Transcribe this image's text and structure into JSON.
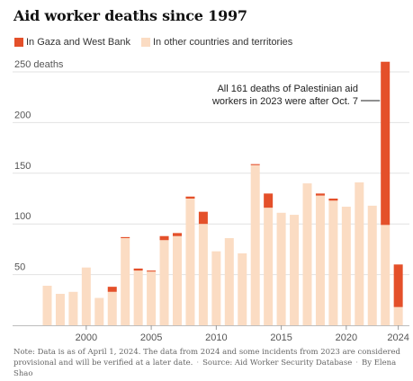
{
  "chart_data": {
    "type": "bar",
    "title": "Aid worker deaths since 1997",
    "stacked": true,
    "x": [
      1997,
      1998,
      1999,
      2000,
      2001,
      2002,
      2003,
      2004,
      2005,
      2006,
      2007,
      2008,
      2009,
      2010,
      2011,
      2012,
      2013,
      2014,
      2015,
      2016,
      2017,
      2018,
      2019,
      2020,
      2021,
      2022,
      2023,
      2024
    ],
    "series": [
      {
        "name": "In Gaza and West Bank",
        "color": "#e4502a",
        "values": [
          0,
          0,
          0,
          0,
          0,
          5,
          1,
          2,
          1,
          4,
          3,
          2,
          12,
          0,
          0,
          0,
          1,
          14,
          0,
          0,
          0,
          2,
          2,
          0,
          0,
          0,
          161,
          42
        ]
      },
      {
        "name": "In other countries and territories",
        "color": "#fbdcc3",
        "values": [
          39,
          31,
          33,
          57,
          27,
          33,
          86,
          54,
          53,
          84,
          88,
          125,
          100,
          73,
          86,
          71,
          158,
          116,
          111,
          109,
          140,
          128,
          123,
          117,
          141,
          118,
          99,
          18
        ]
      }
    ],
    "y_ticks": [
      {
        "value": 50,
        "label": "50"
      },
      {
        "value": 100,
        "label": "100"
      },
      {
        "value": 150,
        "label": "150"
      },
      {
        "value": 200,
        "label": "200"
      },
      {
        "value": 250,
        "label": "250 deaths"
      }
    ],
    "x_ticks": [
      {
        "value": 2000,
        "label": "2000"
      },
      {
        "value": 2005,
        "label": "2005"
      },
      {
        "value": 2010,
        "label": "2010"
      },
      {
        "value": 2015,
        "label": "2015"
      },
      {
        "value": 2020,
        "label": "2020"
      },
      {
        "value": 2024,
        "label": "2024"
      }
    ],
    "ylim": [
      0,
      260
    ],
    "grid": true,
    "legend_position": "top-left",
    "annotation": {
      "lines": [
        "All 161 deaths of Palestinian aid",
        "workers in 2023 were after Oct. 7"
      ],
      "points_to": 2023
    }
  },
  "note": {
    "text": "Note: Data is as of April 1, 2024. The data from 2024 and some incidents from 2023 are considered provisional and will be verified at a later date.",
    "source": "Source: Aid Worker Security Database",
    "credit": "By Elena Shao"
  }
}
